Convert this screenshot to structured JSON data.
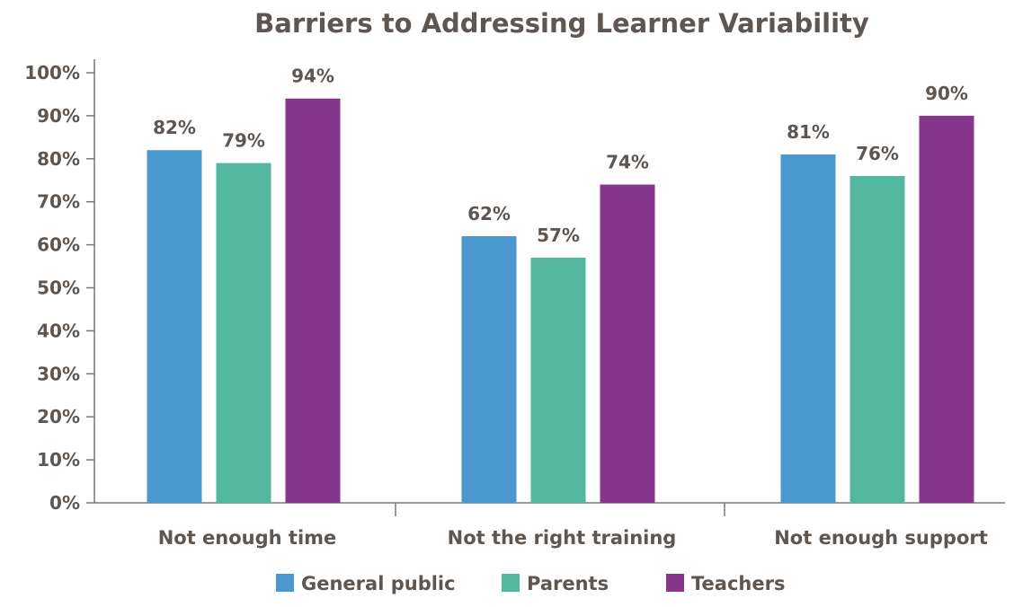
{
  "chart_data": {
    "type": "bar",
    "title": "Barriers to Addressing Learner Variability",
    "categories": [
      "Not enough time",
      "Not the right training",
      "Not enough support"
    ],
    "series": [
      {
        "name": "General public",
        "color": "#4b97cf",
        "values": [
          82,
          62,
          81
        ],
        "labels": [
          "82%",
          "62%",
          "81%"
        ]
      },
      {
        "name": "Parents",
        "color": "#52b79e",
        "values": [
          79,
          57,
          76
        ],
        "labels": [
          "79%",
          "57%",
          "76%"
        ]
      },
      {
        "name": "Teachers",
        "color": "#87368e",
        "values": [
          94,
          74,
          90
        ],
        "labels": [
          "94%",
          "74%",
          "90%"
        ]
      }
    ],
    "yticks": [
      "0%",
      "10%",
      "20%",
      "30%",
      "40%",
      "50%",
      "60%",
      "70%",
      "80%",
      "90%",
      "100%"
    ],
    "ylim": [
      0,
      100
    ],
    "grid": false,
    "legend_position": "bottom"
  }
}
